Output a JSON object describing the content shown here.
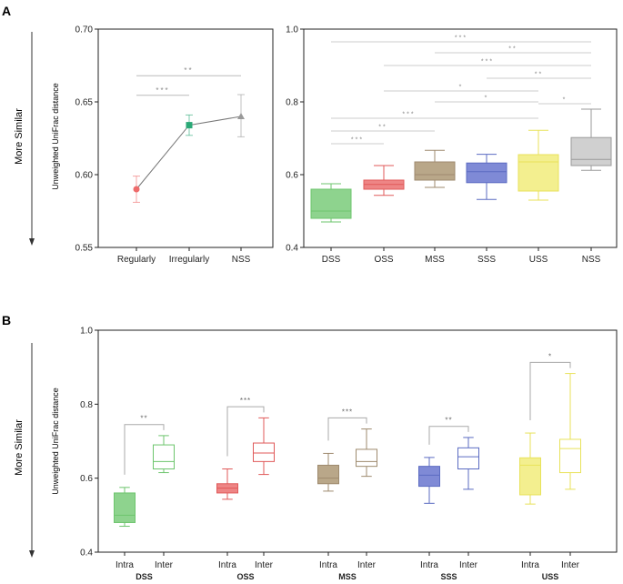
{
  "panels": {
    "A": {
      "letter": "A",
      "side_label": "More Similar",
      "ylabel": "Unweighted UniFrac distance"
    },
    "B": {
      "letter": "B",
      "side_label": "More Similar",
      "ylabel": "Unweighted UniFrac distance"
    }
  },
  "chart_data": [
    {
      "id": "A-left",
      "type": "line",
      "ylabel": "Unweighted UniFrac distance",
      "ylim": [
        0.55,
        0.7
      ],
      "yticks": [
        "0.55",
        "0.60",
        "0.65",
        "0.70"
      ],
      "categories": [
        "Regularly",
        "Irregularly",
        "NSS"
      ],
      "points": [
        {
          "category": "Regularly",
          "mean": 0.59,
          "err_low": 0.581,
          "err_high": 0.599,
          "color": "#ee6b6b",
          "marker": "circle"
        },
        {
          "category": "Irregularly",
          "mean": 0.634,
          "err_low": 0.627,
          "err_high": 0.641,
          "color": "#2aa876",
          "marker": "square"
        },
        {
          "category": "NSS",
          "mean": 0.64,
          "err_low": 0.626,
          "err_high": 0.655,
          "color": "#999999",
          "marker": "triangle"
        }
      ],
      "line_color": "#777777",
      "significance": [
        {
          "from": "Regularly",
          "to": "Irregularly",
          "y": 0.6545,
          "label": "***"
        },
        {
          "from": "Regularly",
          "to": "NSS",
          "y": 0.668,
          "label": "**"
        }
      ]
    },
    {
      "id": "A-right",
      "type": "box",
      "ylim": [
        0.4,
        1.0
      ],
      "yticks": [
        "0.4",
        "0.6",
        "0.8",
        "1.0"
      ],
      "categories": [
        "DSS",
        "OSS",
        "MSS",
        "SSS",
        "USS",
        "NSS"
      ],
      "boxes": [
        {
          "name": "DSS",
          "min": 0.47,
          "q1": 0.48,
          "median": 0.5,
          "q3": 0.56,
          "max": 0.575,
          "color": "#6dc56d",
          "fill": "#8ed38e"
        },
        {
          "name": "OSS",
          "min": 0.543,
          "q1": 0.56,
          "median": 0.573,
          "q3": 0.585,
          "max": 0.625,
          "color": "#e05a5a",
          "fill": "#ee8585"
        },
        {
          "name": "MSS",
          "min": 0.565,
          "q1": 0.585,
          "median": 0.6,
          "q3": 0.635,
          "max": 0.667,
          "color": "#9e8a6e",
          "fill": "#b9a789"
        },
        {
          "name": "SSS",
          "min": 0.532,
          "q1": 0.578,
          "median": 0.608,
          "q3": 0.632,
          "max": 0.656,
          "color": "#5b6bc2",
          "fill": "#7f8ad6"
        },
        {
          "name": "USS",
          "min": 0.53,
          "q1": 0.555,
          "median": 0.635,
          "q3": 0.655,
          "max": 0.722,
          "color": "#e8e25a",
          "fill": "#f3ef8f"
        },
        {
          "name": "NSS",
          "min": 0.612,
          "q1": 0.625,
          "median": 0.642,
          "q3": 0.702,
          "max": 0.78,
          "color": "#9a9a9a",
          "fill": "#d0d0d0"
        }
      ],
      "significance": [
        {
          "from": "DSS",
          "to": "NSS",
          "y": 0.965,
          "label": "***"
        },
        {
          "from": "MSS",
          "to": "NSS",
          "y": 0.935,
          "label": "**"
        },
        {
          "from": "OSS",
          "to": "NSS",
          "y": 0.9,
          "label": "***"
        },
        {
          "from": "SSS",
          "to": "NSS",
          "y": 0.865,
          "label": "**"
        },
        {
          "from": "OSS",
          "to": "USS",
          "y": 0.83,
          "label": "*"
        },
        {
          "from": "MSS",
          "to": "USS",
          "y": 0.8,
          "label": "*"
        },
        {
          "from": "USS",
          "to": "NSS",
          "y": 0.795,
          "label": "*"
        },
        {
          "from": "DSS",
          "to": "SSS",
          "y": 0.755,
          "label": "***"
        },
        {
          "from": "DSS",
          "to": "USS",
          "y": 0.755,
          "label": ""
        },
        {
          "from": "DSS",
          "to": "MSS",
          "y": 0.72,
          "label": "**"
        },
        {
          "from": "DSS",
          "to": "OSS",
          "y": 0.685,
          "label": "***"
        }
      ]
    },
    {
      "id": "B",
      "type": "box",
      "ylabel": "Unweighted UniFrac distance",
      "ylim": [
        0.4,
        1.0
      ],
      "yticks": [
        "0.4",
        "0.6",
        "0.8",
        "1.0"
      ],
      "groups": [
        {
          "name": "DSS",
          "color": "#6dc56d",
          "fill": "#8ed38e",
          "sig": "**",
          "intra": {
            "min": 0.47,
            "q1": 0.48,
            "median": 0.5,
            "q3": 0.56,
            "max": 0.575
          },
          "inter": {
            "min": 0.615,
            "q1": 0.625,
            "median": 0.645,
            "q3": 0.69,
            "max": 0.715
          }
        },
        {
          "name": "OSS",
          "color": "#e05a5a",
          "fill": "#ee8585",
          "sig": "***",
          "intra": {
            "min": 0.543,
            "q1": 0.56,
            "median": 0.573,
            "q3": 0.585,
            "max": 0.625
          },
          "inter": {
            "min": 0.61,
            "q1": 0.645,
            "median": 0.668,
            "q3": 0.695,
            "max": 0.763
          }
        },
        {
          "name": "MSS",
          "color": "#9e8a6e",
          "fill": "#b9a789",
          "sig": "***",
          "intra": {
            "min": 0.565,
            "q1": 0.585,
            "median": 0.6,
            "q3": 0.635,
            "max": 0.667
          },
          "inter": {
            "min": 0.605,
            "q1": 0.632,
            "median": 0.645,
            "q3": 0.678,
            "max": 0.733
          }
        },
        {
          "name": "SSS",
          "color": "#5b6bc2",
          "fill": "#7f8ad6",
          "sig": "**",
          "intra": {
            "min": 0.532,
            "q1": 0.578,
            "median": 0.608,
            "q3": 0.632,
            "max": 0.656
          },
          "inter": {
            "min": 0.57,
            "q1": 0.625,
            "median": 0.658,
            "q3": 0.682,
            "max": 0.71
          }
        },
        {
          "name": "USS",
          "color": "#e8e25a",
          "fill": "#f3ef8f",
          "sig": "*",
          "intra": {
            "min": 0.53,
            "q1": 0.555,
            "median": 0.635,
            "q3": 0.655,
            "max": 0.722
          },
          "inter": {
            "min": 0.57,
            "q1": 0.615,
            "median": 0.68,
            "q3": 0.705,
            "max": 0.883
          }
        }
      ],
      "pair_labels": [
        "Intra",
        "Inter"
      ]
    }
  ]
}
